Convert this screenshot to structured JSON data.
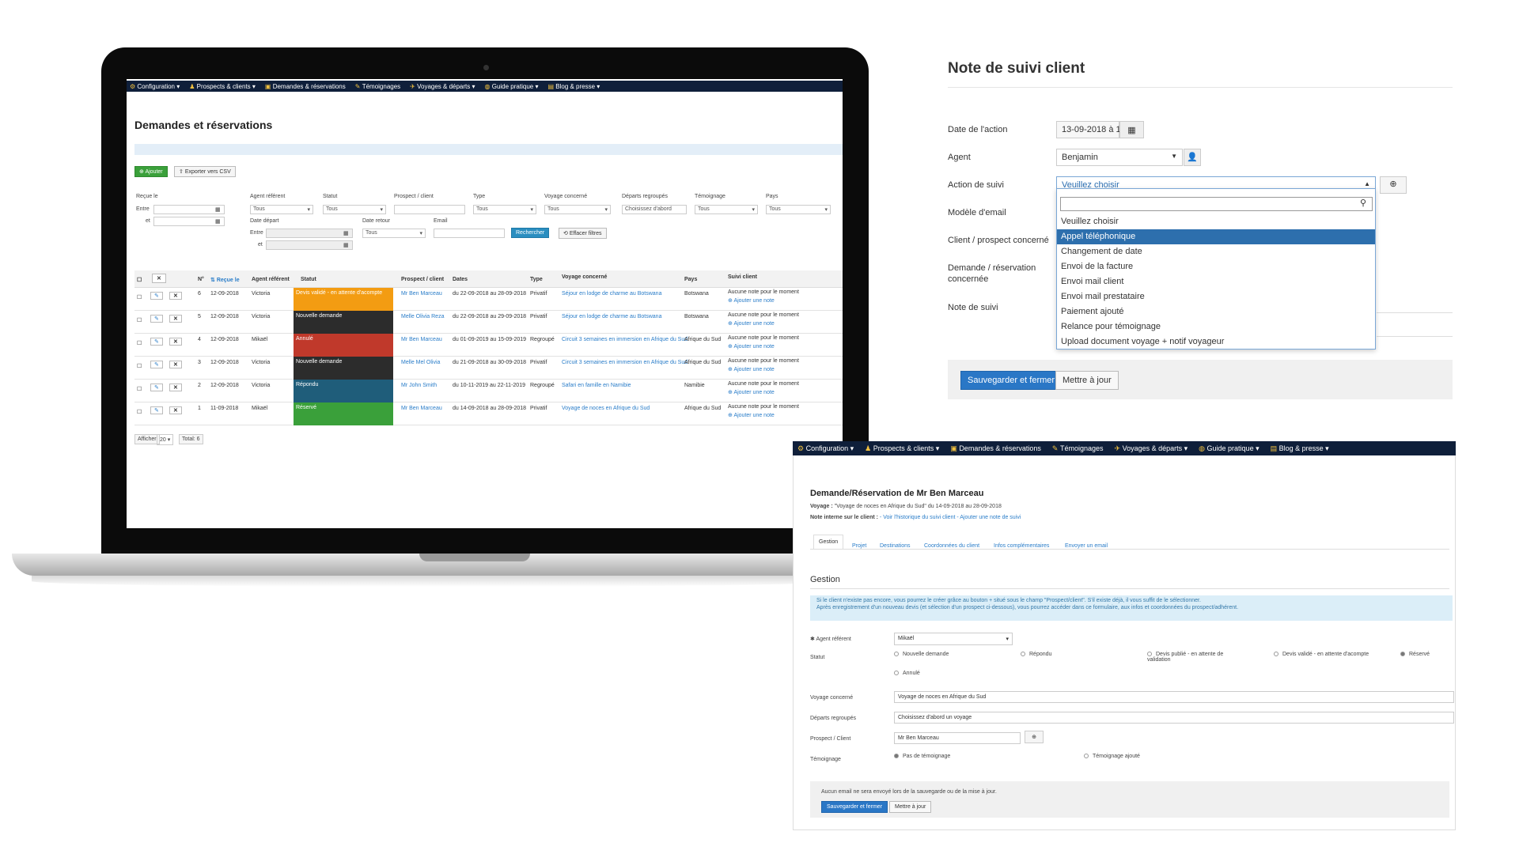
{
  "nav": {
    "items": [
      {
        "label": "Configuration ▾",
        "icon": "gear-icon"
      },
      {
        "label": "Prospects & clients ▾",
        "icon": "users-icon"
      },
      {
        "label": "Demandes & réservations",
        "icon": "calendar-icon"
      },
      {
        "label": "Témoignages",
        "icon": "comment-icon"
      },
      {
        "label": "Voyages & départs ▾",
        "icon": "plane-icon"
      },
      {
        "label": "Guide pratique ▾",
        "icon": "globe-icon"
      },
      {
        "label": "Blog & presse ▾",
        "icon": "book-icon"
      }
    ]
  },
  "list": {
    "title": "Demandes et réservations",
    "add_label": "Ajouter",
    "export_label": "Exporter vers CSV",
    "filters": {
      "recue_le": "Reçue le",
      "entre": "Entre",
      "et": "et",
      "agent": "Agent référent",
      "statut": "Statut",
      "prospect": "Prospect / client",
      "type": "Type",
      "voyage": "Voyage concerné",
      "departs": "Départs regroupés",
      "temoignage": "Témoignage",
      "pays": "Pays",
      "tous": "Tous",
      "departs_value": "Choisissez d'abord",
      "date_depart": "Date départ",
      "date_retour": "Date retour",
      "email": "Email",
      "search_label": "Rechercher",
      "clear_label": "Effacer filtres"
    },
    "columns": [
      "N°",
      "Reçue le",
      "Agent référent",
      "Statut",
      "Prospect / client",
      "Dates",
      "Type",
      "Voyage concerné",
      "Pays",
      "Suivi client"
    ],
    "note_empty": "Aucune note pour le moment",
    "add_note": "Ajouter une note",
    "rows": [
      {
        "num": "6",
        "date": "12-09-2018",
        "agent": "Victoria",
        "status": "Devis validé - en attente d'acompte",
        "color": "#f39c12",
        "client": "Mr Ben Marceau",
        "dates": "du 22-09-2018 au 28-09-2018",
        "type": "Privatif",
        "voyage": "Séjour en lodge de charme au Botswana",
        "pays": "Botswana"
      },
      {
        "num": "5",
        "date": "12-09-2018",
        "agent": "Victoria",
        "status": "Nouvelle demande",
        "color": "#2c2c2c",
        "client": "Melle Olivia Reza",
        "dates": "du 22-09-2018 au 29-09-2018",
        "type": "Privatif",
        "voyage": "Séjour en lodge de charme au Botswana",
        "pays": "Botswana"
      },
      {
        "num": "4",
        "date": "12-09-2018",
        "agent": "Mikaël",
        "status": "Annulé",
        "color": "#c0392b",
        "client": "Mr Ben Marceau",
        "dates": "du 01-09-2019 au 15-09-2019",
        "type": "Regroupé",
        "voyage": "Circuit 3 semaines en immersion en Afrique du Sud",
        "pays": "Afrique du Sud"
      },
      {
        "num": "3",
        "date": "12-09-2018",
        "agent": "Victoria",
        "status": "Nouvelle demande",
        "color": "#2c2c2c",
        "client": "Melle Mel Olivia",
        "dates": "du 21-09-2018 au 30-09-2018",
        "type": "Privatif",
        "voyage": "Circuit 3 semaines en immersion en Afrique du Sud",
        "pays": "Afrique du Sud"
      },
      {
        "num": "2",
        "date": "12-09-2018",
        "agent": "Victoria",
        "status": "Répondu",
        "color": "#1f5d7a",
        "client": "Mr John Smith",
        "dates": "du 10-11-2019 au 22-11-2019",
        "type": "Regroupé",
        "voyage": "Safari en famille en Namibie",
        "pays": "Namibie"
      },
      {
        "num": "1",
        "date": "11-09-2018",
        "agent": "Mikaël",
        "status": "Réservé",
        "color": "#3aa03a",
        "client": "Mr Ben Marceau",
        "dates": "du 14-09-2018 au 28-09-2018",
        "type": "Privatif",
        "voyage": "Voyage de noces en Afrique du Sud",
        "pays": "Afrique du Sud"
      }
    ],
    "footer": {
      "show": "Afficher",
      "count": "20",
      "total": "Total: 6"
    }
  },
  "note": {
    "title": "Note de suivi client",
    "date_label": "Date de l'action",
    "date_value": "13-09-2018 à 1(",
    "agent_label": "Agent",
    "agent_value": "Benjamin",
    "action_label": "Action de suivi",
    "action_value": "Veuillez choisir",
    "email_label": "Modèle d'email",
    "client_label": "Client / prospect concerné",
    "demande_label": "Demande / réservation concernée",
    "note_label": "Note de suivi",
    "options": [
      "Veuillez choisir",
      "Appel téléphonique",
      "Changement de date",
      "Envoi de la facture",
      "Envoi mail client",
      "Envoi mail prestataire",
      "Paiement ajouté",
      "Relance pour témoignage",
      "Upload document voyage + notif voyageur"
    ],
    "save_close": "Sauvegarder et fermer",
    "update": "Mettre à jour"
  },
  "detail": {
    "title": "Demande/Réservation de Mr Ben Marceau",
    "voyage_label": "Voyage :",
    "voyage_value": "\"Voyage de noces en Afrique du Sud\" du 14-09-2018 au 28-09-2018",
    "note_label": "Note interne sur le client :",
    "note_links": "- Voir l'historique du suivi client - Ajouter une note de suivi",
    "tabs": [
      "Gestion",
      "Projet",
      "Destinations",
      "Coordonnées du client",
      "Infos complémentaires",
      "Envoyer un email"
    ],
    "section": "Gestion",
    "info1": "Si le client n'existe pas encore, vous pourrez le créer grâce au bouton + situé sous le champ \"Prospect/client\". S'il existe déjà, il vous suffit de le sélectionner.",
    "info2": "Après enregistrement d'un nouveau devis (et sélection d'un prospect ci-dessous), vous pourrez accéder dans ce formulaire, aux infos et coordonnées du prospect/adhérent.",
    "agent_label": "Agent référent",
    "agent_value": "Mikaël",
    "statut_label": "Statut",
    "statuts": [
      "Nouvelle demande",
      "Répondu",
      "Devis publié - en attente de validation",
      "Devis validé - en attente d'acompte",
      "Réservé",
      "Annulé"
    ],
    "voyage_field_label": "Voyage concerné",
    "voyage_field_value": "Voyage de noces en Afrique du Sud",
    "departs_label": "Départs regroupés",
    "departs_value": "Choisissez d'abord un voyage",
    "prospect_label": "Prospect / Client",
    "prospect_value": "Mr Ben Marceau",
    "temoignage_label": "Témoignage",
    "temoignage_opts": [
      "Pas de témoignage",
      "Témoignage ajouté"
    ],
    "footer_note": "Aucun email ne sera envoyé lors de la sauvegarde ou de la mise à jour.",
    "save_close": "Sauvegarder et fermer",
    "update": "Mettre à jour"
  }
}
